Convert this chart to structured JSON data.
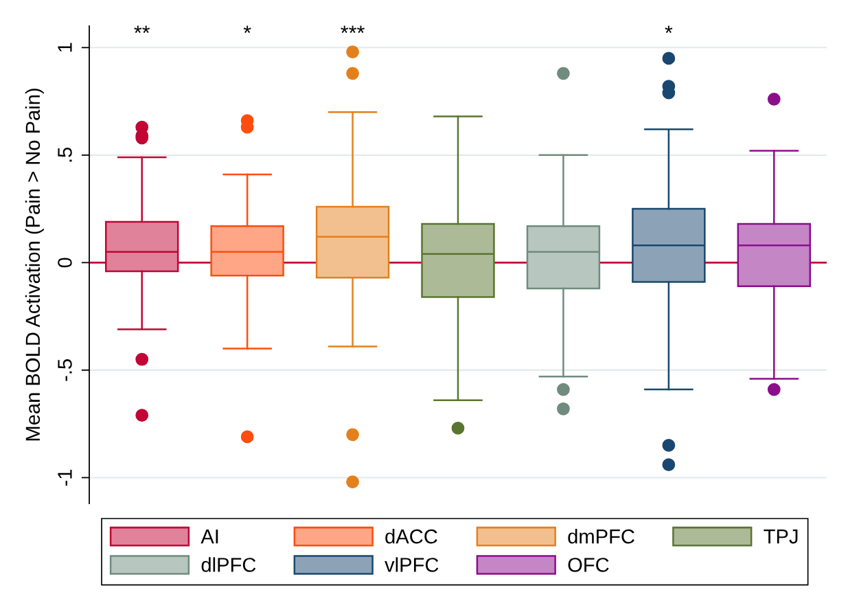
{
  "chart_data": {
    "type": "box",
    "ylabel": "Mean BOLD Activation (Pain > No Pain)",
    "categories": [
      null,
      null,
      null,
      null,
      null,
      null,
      null
    ],
    "series": [
      {
        "name": "AI",
        "color": "#c10534",
        "boxes": [
          {
            "low": -0.31,
            "q1": -0.04,
            "median": 0.05,
            "q3": 0.19,
            "high": 0.49,
            "outliers": [
              0.63,
              0.59,
              0.58,
              -0.45,
              -0.71
            ]
          },
          null,
          null,
          null,
          null,
          null,
          null
        ]
      },
      {
        "name": "dACC",
        "color": "#ff4d0f",
        "boxes": [
          null,
          {
            "low": -0.4,
            "q1": -0.06,
            "median": 0.05,
            "q3": 0.17,
            "high": 0.41,
            "outliers": [
              0.66,
              0.63,
              -0.81
            ]
          },
          null,
          null,
          null,
          null,
          null
        ]
      },
      {
        "name": "dmPFC",
        "color": "#e3801c",
        "boxes": [
          null,
          null,
          {
            "low": -0.39,
            "q1": -0.07,
            "median": 0.12,
            "q3": 0.26,
            "high": 0.7,
            "outliers": [
              0.98,
              0.88,
              -0.8,
              -1.02
            ]
          },
          null,
          null,
          null,
          null
        ]
      },
      {
        "name": "TPJ",
        "color": "#5a7530",
        "boxes": [
          null,
          null,
          null,
          {
            "low": -0.64,
            "q1": -0.16,
            "median": 0.04,
            "q3": 0.18,
            "high": 0.68,
            "outliers": [
              -0.77
            ]
          },
          null,
          null,
          null
        ]
      },
      {
        "name": "dlPFC",
        "color": "#6f8c7e",
        "boxes": [
          null,
          null,
          null,
          null,
          {
            "low": -0.53,
            "q1": -0.12,
            "median": 0.05,
            "q3": 0.17,
            "high": 0.5,
            "outliers": [
              0.88,
              -0.59,
              -0.68
            ]
          },
          null,
          null
        ]
      },
      {
        "name": "vlPFC",
        "color": "#1a476f",
        "boxes": [
          null,
          null,
          null,
          null,
          null,
          {
            "low": -0.59,
            "q1": -0.09,
            "median": 0.08,
            "q3": 0.25,
            "high": 0.62,
            "outliers": [
              0.95,
              0.82,
              0.79,
              -0.85,
              -0.94
            ]
          },
          null
        ]
      },
      {
        "name": "OFC",
        "color": "#8b0e8b",
        "boxes": [
          null,
          null,
          null,
          null,
          null,
          null,
          {
            "low": -0.54,
            "q1": -0.11,
            "median": 0.08,
            "q3": 0.18,
            "high": 0.52,
            "outliers": [
              0.76,
              -0.59
            ]
          }
        ]
      }
    ],
    "ylim": [
      -1.12,
      1.1
    ],
    "yticks": [
      -1,
      {
        "value": -0.5,
        "label": "-.5"
      },
      0,
      {
        "value": 0.5,
        "label": ".5"
      },
      1
    ],
    "ref_lines": [
      {
        "axis": "y",
        "value": 0,
        "color": "#c10534"
      }
    ],
    "annotations": [
      "**",
      "*",
      "***",
      "*"
    ],
    "grid": "y",
    "legend": "bottom",
    "tick_labels": "y",
    "marker": "circle"
  }
}
